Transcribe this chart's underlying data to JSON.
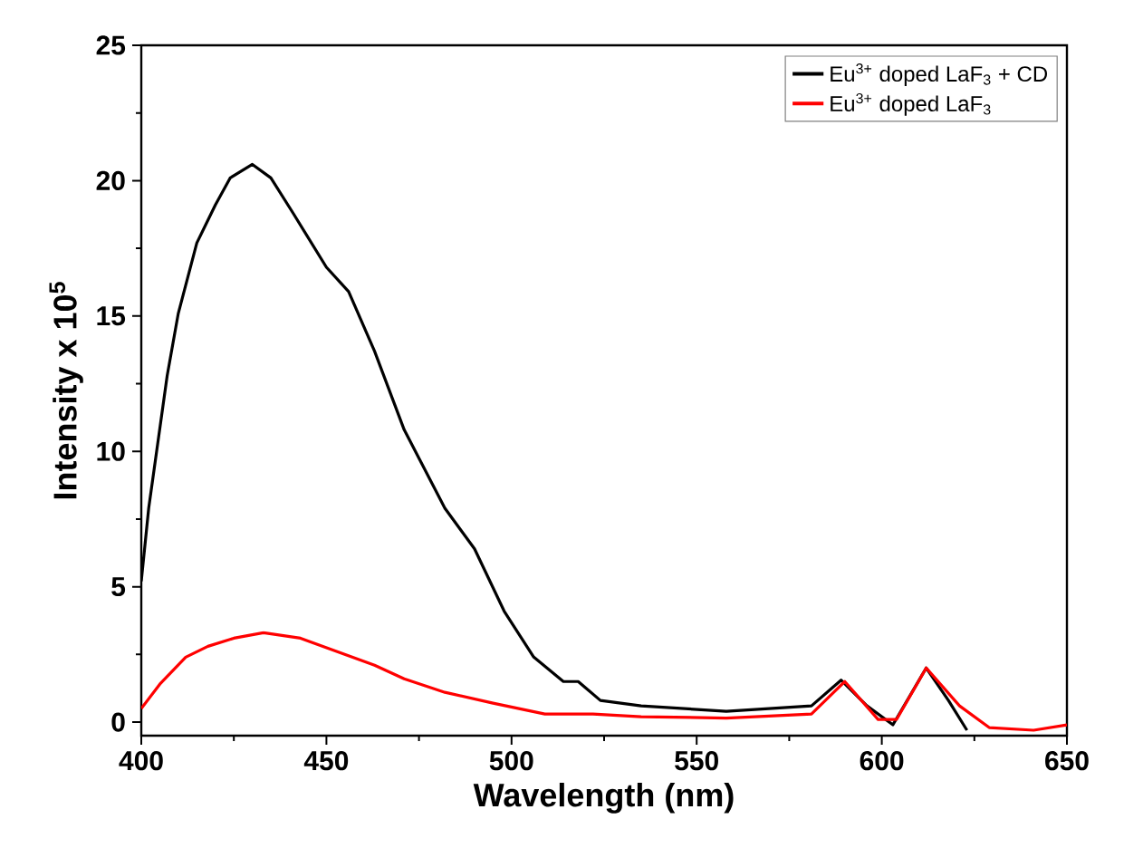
{
  "chart_data": {
    "type": "line",
    "xlabel": "Wavelength (nm)",
    "ylabel": "Intensity x 10$^{5}$",
    "xlim": [
      400,
      650
    ],
    "ylim": [
      -0.5,
      25
    ],
    "xticks": [
      400,
      450,
      500,
      550,
      600,
      650
    ],
    "yticks": [
      0,
      5,
      10,
      15,
      20,
      25
    ],
    "legend": "top right",
    "grid": false,
    "marker": "none",
    "line_style": "solid",
    "series": [
      {
        "name": "Eu$^{3+}$ doped LaF$_{3}$ + CD",
        "color": "#000000",
        "x": [
          400,
          402,
          407,
          410,
          415,
          420,
          424,
          430,
          435,
          441,
          450,
          456,
          463,
          471,
          482,
          490,
          498,
          506,
          514,
          518,
          524,
          535,
          558,
          581,
          589,
          596,
          603,
          612,
          618,
          623
        ],
        "values": [
          5.2,
          7.9,
          12.8,
          15.1,
          17.7,
          19.1,
          20.1,
          20.6,
          20.1,
          18.8,
          16.8,
          15.9,
          13.7,
          10.8,
          7.9,
          6.4,
          4.1,
          2.4,
          1.5,
          1.5,
          0.8,
          0.6,
          0.4,
          0.6,
          1.55,
          0.6,
          -0.1,
          2.0,
          0.8,
          -0.3
        ]
      },
      {
        "name": "Eu$^{3+}$ doped LaF$_{3}$",
        "color": "#ff0000",
        "x": [
          400,
          405,
          412,
          418,
          425,
          433,
          443,
          453,
          463,
          471,
          482,
          495,
          509,
          522,
          535,
          558,
          581,
          590,
          599,
          604,
          612,
          621,
          629,
          641,
          650
        ],
        "values": [
          0.5,
          1.4,
          2.4,
          2.8,
          3.1,
          3.3,
          3.1,
          2.6,
          2.1,
          1.6,
          1.1,
          0.7,
          0.3,
          0.3,
          0.2,
          0.15,
          0.3,
          1.5,
          0.1,
          0.1,
          2.0,
          0.6,
          -0.2,
          -0.3,
          -0.1
        ]
      }
    ]
  }
}
